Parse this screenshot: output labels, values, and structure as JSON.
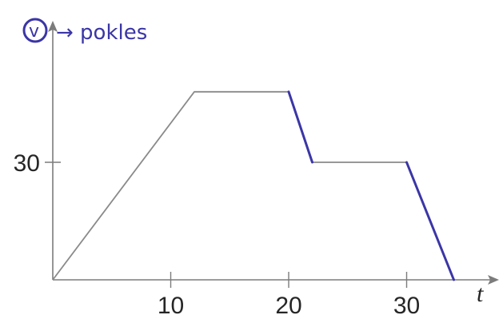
{
  "chart_data": {
    "type": "line",
    "xlabel": "t",
    "ylabel": "v",
    "annotation": "→ pokles",
    "x_ticks": [
      10,
      20,
      30
    ],
    "y_ticks": [
      30
    ],
    "xlim": [
      0,
      38
    ],
    "ylim": [
      0,
      62
    ],
    "series": [
      {
        "x": [
          0,
          12,
          20,
          22,
          30,
          34
        ],
        "y": [
          0,
          48,
          48,
          30,
          30,
          0
        ]
      }
    ],
    "highlighted_segments": [
      {
        "x": [
          20,
          22
        ],
        "y": [
          48,
          30
        ]
      },
      {
        "x": [
          30,
          34
        ],
        "y": [
          30,
          0
        ]
      }
    ],
    "colors": {
      "axes": "#7c7c7c",
      "line": "#8a8a8a",
      "ink": "#3b36a6",
      "text": "#262626"
    }
  }
}
